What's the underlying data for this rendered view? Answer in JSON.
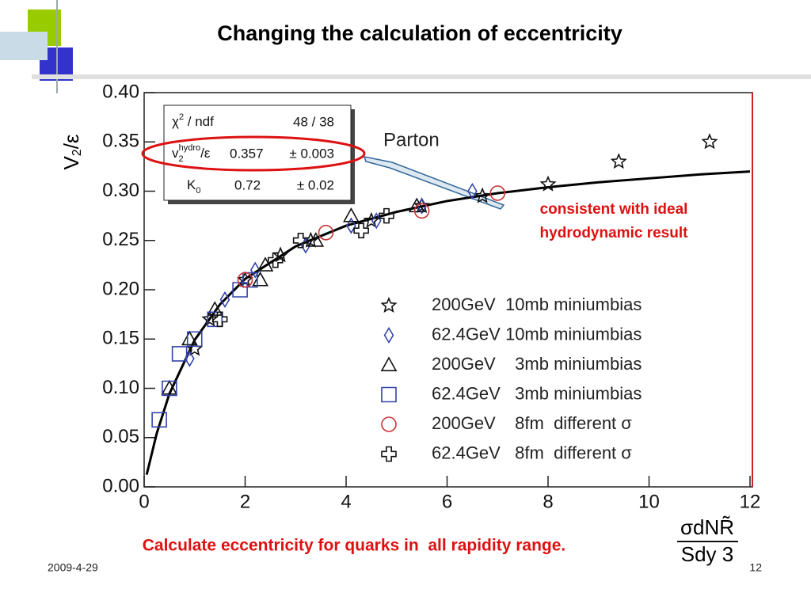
{
  "slide": {
    "title": "Changing the calculation of eccentricity",
    "note": "consistent with ideal\nhydrodynamic result",
    "caption": "Calculate eccentricity for quarks in  all rapidity range.",
    "date": "2009-4-29",
    "page": "12"
  },
  "chart_data": {
    "type": "scatter",
    "ylabel": {
      "main": "V",
      "sub": "2",
      "rest": "/ε"
    },
    "xlabel": {
      "top": "σdNR̃",
      "bottom": "Sdy 3"
    },
    "label": "Parton",
    "stats": {
      "chi_label": "χ",
      "chi_sup": "2",
      "chi_rest": " / ndf",
      "chi_value": "48 / 38",
      "v_base": "v",
      "v_sub": "2",
      "v_sup": "hydro",
      "v_rest": "/ε",
      "v_value": "0.357",
      "v_error": "± 0.003",
      "k_base": "K",
      "k_sub": "0",
      "k_value": "0.72",
      "k_error": "± 0.02"
    },
    "xlim": [
      0,
      12
    ],
    "xticks": [
      0,
      2,
      4,
      6,
      8,
      10,
      12
    ],
    "ylim": [
      0,
      0.4
    ],
    "yticks": [
      {
        "value": 0,
        "label": "0.00"
      },
      0.05,
      {
        "value": 0.1,
        "label": "0.10"
      },
      0.15,
      {
        "value": 0.2,
        "label": "0.20"
      },
      0.25,
      {
        "value": 0.3,
        "label": "0.30"
      },
      0.35,
      {
        "value": 0.4,
        "label": "0.40"
      }
    ],
    "series": [
      {
        "name": "200GeV  10mb miniumbias",
        "color": "#111111",
        "marker": "star",
        "x": [
          1.0,
          1.3,
          2.0,
          2.7,
          3.3,
          4.5,
          5.5,
          6.7,
          8.0,
          9.4,
          11.2
        ],
        "values": [
          0.14,
          0.17,
          0.21,
          0.235,
          0.25,
          0.27,
          0.285,
          0.295,
          0.307,
          0.33,
          0.35
        ]
      },
      {
        "name": "62.4GeV 10mb miniumbias",
        "color": "#3344aa",
        "marker": "diamond",
        "x": [
          0.9,
          1.6,
          2.2,
          3.2,
          4.1,
          4.6,
          5.5,
          6.5
        ],
        "values": [
          0.13,
          0.19,
          0.22,
          0.245,
          0.265,
          0.27,
          0.285,
          0.3
        ]
      },
      {
        "name": "200GeV    3mb miniumbias",
        "color": "#111111",
        "marker": "triangle",
        "x": [
          0.5,
          0.9,
          1.4,
          2.3,
          2.4,
          3.4,
          4.1,
          5.4
        ],
        "values": [
          0.1,
          0.15,
          0.18,
          0.21,
          0.225,
          0.25,
          0.275,
          0.285
        ]
      },
      {
        "name": "62.4GeV   3mb miniumbias",
        "color": "#3344aa",
        "marker": "square",
        "x": [
          0.3,
          0.5,
          0.7,
          1.0,
          1.4,
          1.9,
          2.1
        ],
        "values": [
          0.068,
          0.1,
          0.135,
          0.15,
          0.17,
          0.2,
          0.21
        ]
      },
      {
        "name": "200GeV    8fm  different σ",
        "color": "#cc3333",
        "marker": "circle",
        "x": [
          2.0,
          3.6,
          5.5,
          7.0
        ],
        "values": [
          0.21,
          0.258,
          0.28,
          0.298
        ]
      },
      {
        "name": "62.4GeV   8fm  different σ",
        "color": "#111111",
        "marker": "cross",
        "x": [
          1.5,
          2.6,
          3.1,
          4.3,
          4.8
        ],
        "values": [
          0.17,
          0.23,
          0.25,
          0.26,
          0.275
        ]
      }
    ],
    "fit": {
      "color": "#000000",
      "x": [
        0.05,
        0.25,
        0.5,
        1,
        1.5,
        2,
        3,
        4,
        5,
        6,
        7,
        8,
        9,
        10,
        11,
        12
      ],
      "values": [
        0.0124,
        0.0544,
        0.0944,
        0.149,
        0.185,
        0.211,
        0.244,
        0.265,
        0.279,
        0.29,
        0.298,
        0.304,
        0.309,
        0.313,
        0.317,
        0.32
      ]
    }
  }
}
